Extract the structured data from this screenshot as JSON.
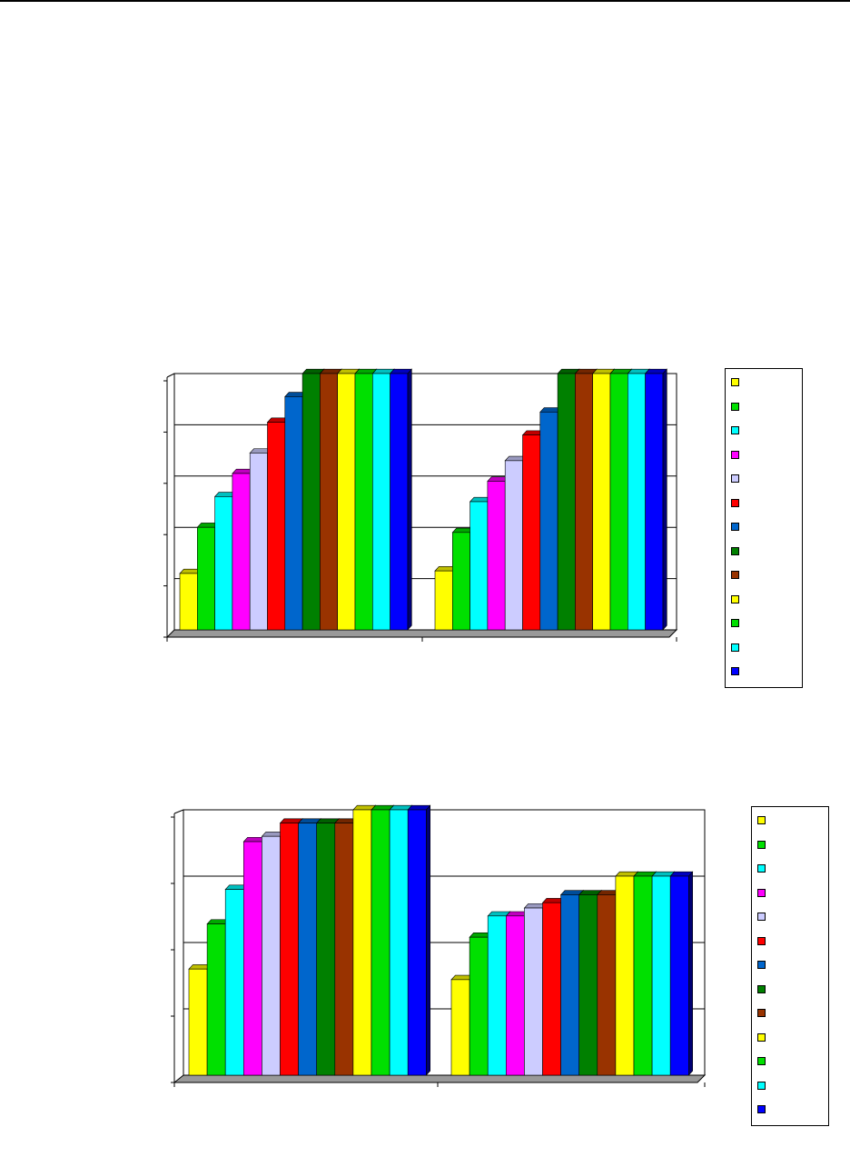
{
  "palette": [
    "#ffff00",
    "#00e000",
    "#00ffff",
    "#ff00ff",
    "#ccccff",
    "#ff0000",
    "#0066cc",
    "#008000",
    "#993300",
    "#ffff00",
    "#00e000",
    "#00ffff",
    "#0000ff"
  ],
  "chart_data": [
    {
      "type": "bar",
      "title": "",
      "xlabel": "",
      "ylabel": "",
      "ylim": [
        0,
        1
      ],
      "grid": true,
      "legend_placement": "right",
      "groups": [
        {
          "values": [
            0.22,
            0.4,
            0.52,
            0.61,
            0.69,
            0.81,
            0.91,
            1.0,
            1.0,
            1.0,
            1.0,
            1.0,
            1.0
          ]
        },
        {
          "values": [
            0.23,
            0.38,
            0.5,
            0.58,
            0.66,
            0.76,
            0.85,
            1.0,
            1.0,
            1.0,
            1.0,
            1.0,
            1.0
          ]
        }
      ]
    },
    {
      "type": "bar",
      "title": "",
      "xlabel": "",
      "ylabel": "",
      "ylim": [
        0,
        1
      ],
      "grid": true,
      "legend_placement": "right",
      "groups": [
        {
          "values": [
            0.4,
            0.57,
            0.7,
            0.88,
            0.9,
            0.95,
            0.95,
            0.95,
            0.95,
            1.0,
            1.0,
            1.0,
            1.0
          ]
        },
        {
          "values": [
            0.36,
            0.52,
            0.6,
            0.6,
            0.63,
            0.65,
            0.68,
            0.68,
            0.68,
            0.75,
            0.75,
            0.75,
            0.75
          ]
        }
      ]
    }
  ]
}
